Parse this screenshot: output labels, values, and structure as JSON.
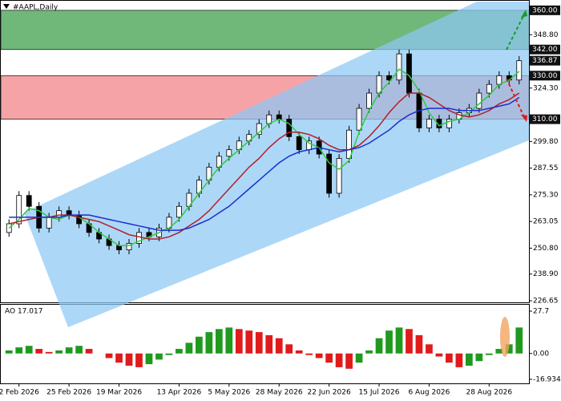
{
  "chart_data": [
    {
      "type": "candlestick",
      "title": "#AAPL,Daily",
      "categories": [
        null,
        "2 Feb 2026",
        null,
        null,
        null,
        null,
        "25 Feb 2026",
        null,
        null,
        null,
        null,
        "19 Mar 2026",
        null,
        null,
        null,
        null,
        null,
        "13 Apr 2026",
        null,
        null,
        null,
        null,
        "5 May 2026",
        null,
        null,
        null,
        null,
        "28 May 2026",
        null,
        null,
        null,
        null,
        "22 Jun 2026",
        null,
        null,
        null,
        null,
        "15 Jul 2026",
        null,
        null,
        null,
        null,
        "6 Aug 2026",
        null,
        null,
        null,
        null,
        null,
        "28 Aug 2026",
        null,
        null,
        null
      ],
      "open": [
        258,
        262,
        275,
        270,
        260,
        265,
        268,
        266,
        262,
        258,
        255,
        252,
        250,
        253,
        258,
        256,
        260,
        265,
        270,
        276,
        282,
        288,
        293,
        296,
        300,
        303,
        308,
        312,
        310,
        302,
        296,
        300,
        294,
        276,
        292,
        305,
        315,
        322,
        330,
        328,
        340,
        322,
        306,
        310,
        306,
        310,
        313,
        315,
        322,
        326,
        330,
        328
      ],
      "high": [
        264,
        277,
        277,
        272,
        267,
        270,
        270,
        268,
        264,
        260,
        257,
        254,
        255,
        260,
        260,
        262,
        267,
        272,
        278,
        284,
        290,
        295,
        298,
        302,
        305,
        310,
        314,
        314,
        312,
        304,
        302,
        302,
        296,
        294,
        307,
        317,
        324,
        332,
        332,
        342,
        342,
        324,
        312,
        312,
        312,
        315,
        317,
        324,
        328,
        332,
        332,
        339
      ],
      "low": [
        256,
        260,
        268,
        258,
        258,
        263,
        264,
        260,
        256,
        253,
        250,
        248,
        248,
        251,
        254,
        254,
        258,
        263,
        268,
        274,
        280,
        286,
        291,
        294,
        298,
        301,
        306,
        308,
        300,
        294,
        294,
        292,
        274,
        274,
        290,
        303,
        313,
        320,
        326,
        326,
        320,
        304,
        304,
        304,
        304,
        308,
        311,
        313,
        320,
        324,
        326,
        326
      ],
      "close": [
        262,
        275,
        270,
        260,
        265,
        268,
        266,
        262,
        258,
        255,
        252,
        250,
        253,
        258,
        256,
        260,
        265,
        270,
        276,
        282,
        288,
        293,
        296,
        300,
        303,
        308,
        312,
        310,
        302,
        296,
        300,
        294,
        276,
        292,
        305,
        315,
        322,
        330,
        328,
        340,
        322,
        306,
        310,
        306,
        310,
        313,
        315,
        322,
        326,
        330,
        328,
        336.87
      ],
      "series": [
        {
          "color": "#2ecc40",
          "values": [
            260,
            264,
            269,
            268,
            265,
            264,
            266,
            265,
            262,
            258,
            255,
            252,
            252,
            254,
            256,
            258,
            260,
            264,
            270,
            276,
            282,
            288,
            292,
            296,
            300,
            304,
            308,
            310,
            308,
            303,
            299,
            297,
            290,
            287,
            291,
            304,
            314,
            322,
            327,
            333,
            330,
            323,
            313,
            307,
            309,
            310,
            313,
            317,
            321,
            326,
            328,
            332
          ]
        },
        {
          "color": "#b0202a",
          "values": [
            262,
            263,
            264,
            265,
            265,
            266,
            266,
            265,
            264,
            263,
            261,
            259,
            257,
            256,
            255,
            255,
            256,
            258,
            261,
            264,
            268,
            273,
            278,
            283,
            288,
            292,
            297,
            301,
            304,
            304,
            303,
            301,
            298,
            296,
            296,
            298,
            302,
            307,
            313,
            318,
            322,
            322,
            320,
            317,
            314,
            312,
            311,
            312,
            314,
            317,
            319,
            322
          ]
        },
        {
          "color": "#1a2fd0",
          "values": [
            265,
            265,
            265,
            265,
            265,
            265,
            266,
            266,
            266,
            265,
            264,
            263,
            262,
            261,
            260,
            259,
            259,
            259,
            260,
            262,
            264,
            267,
            270,
            274,
            278,
            282,
            286,
            290,
            293,
            295,
            296,
            297,
            296,
            295,
            296,
            297,
            299,
            302,
            305,
            309,
            312,
            314,
            315,
            315,
            315,
            314,
            314,
            314,
            315,
            316,
            317,
            320
          ]
        }
      ],
      "ylim": [
        226.65,
        364.0
      ],
      "yticks": [
        226.65,
        {
          "value": 238.9,
          "label": "238.90"
        },
        {
          "value": 250.8,
          "label": "250.80"
        },
        {
          "value": 263.05,
          "label": "263.05"
        },
        {
          "value": 275.3,
          "label": "275.30"
        },
        287.55,
        {
          "value": 299.8,
          "label": "299.80"
        },
        {
          "value": 324.3,
          "label": "324.30"
        },
        {
          "value": 348.8,
          "label": "348.80"
        }
      ],
      "zones": [
        {
          "from": {
            "value": 342,
            "label": "342.00"
          },
          "to": {
            "value": 360,
            "label": "360.00"
          },
          "color": "#6fb87a"
        },
        {
          "from": {
            "value": 310,
            "label": "310.00"
          },
          "to": {
            "value": 330,
            "label": "330.00"
          },
          "color": "#f6a3a8"
        }
      ],
      "last_price": 336.87
    },
    {
      "type": "bar",
      "title": "AO 17.017",
      "values": [
        2,
        4,
        5,
        3,
        1,
        2,
        4,
        5,
        3,
        0,
        -3,
        -6,
        -8,
        -9,
        -7,
        -4,
        -1,
        3,
        7,
        11,
        14,
        16,
        17,
        16,
        15,
        14,
        12,
        10,
        6,
        2,
        -1,
        -3,
        -6,
        -9,
        -10,
        -6,
        2,
        10,
        15,
        17,
        16,
        12,
        6,
        -2,
        -6,
        -9,
        -8,
        -5,
        -1,
        3,
        6,
        17.017
      ],
      "up_color": "#1f9a1f",
      "down_color": "#e01b1b",
      "ylim": [
        -16.934,
        27.7
      ],
      "yticks": [
        -16.934,
        {
          "value": 0,
          "label": "0.00"
        },
        27.7
      ]
    }
  ]
}
